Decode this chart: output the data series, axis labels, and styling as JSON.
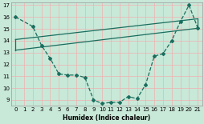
{
  "xlabel": "Humidex (Indice chaleur)",
  "xlim": [
    -0.5,
    21.5
  ],
  "ylim": [
    8.5,
    17.2
  ],
  "yticks": [
    9,
    10,
    11,
    12,
    13,
    14,
    15,
    16,
    17
  ],
  "xticks": [
    0,
    1,
    2,
    3,
    4,
    5,
    6,
    7,
    8,
    9,
    10,
    11,
    12,
    13,
    14,
    15,
    16,
    17,
    18,
    19,
    20,
    21
  ],
  "bg_color": "#c8e8d8",
  "grid_color": "#e8f8f0",
  "line_color": "#1a6e5e",
  "curve_x": [
    0,
    2,
    3,
    4,
    5,
    6,
    7,
    8,
    9,
    10,
    11,
    12,
    13,
    14,
    15,
    16,
    17,
    18,
    19,
    20,
    21
  ],
  "curve_y": [
    16.0,
    15.2,
    13.6,
    12.5,
    11.2,
    11.1,
    11.1,
    10.9,
    9.0,
    8.7,
    8.8,
    8.8,
    9.3,
    9.1,
    10.3,
    12.7,
    12.9,
    14.0,
    15.6,
    17.0,
    15.1
  ],
  "line1_x": [
    0,
    21
  ],
  "line1_y": [
    14.1,
    15.85
  ],
  "line2_x": [
    0,
    21
  ],
  "line2_y": [
    13.2,
    15.05
  ],
  "xlabel_fontsize": 5.5,
  "tick_fontsize": 5.0
}
